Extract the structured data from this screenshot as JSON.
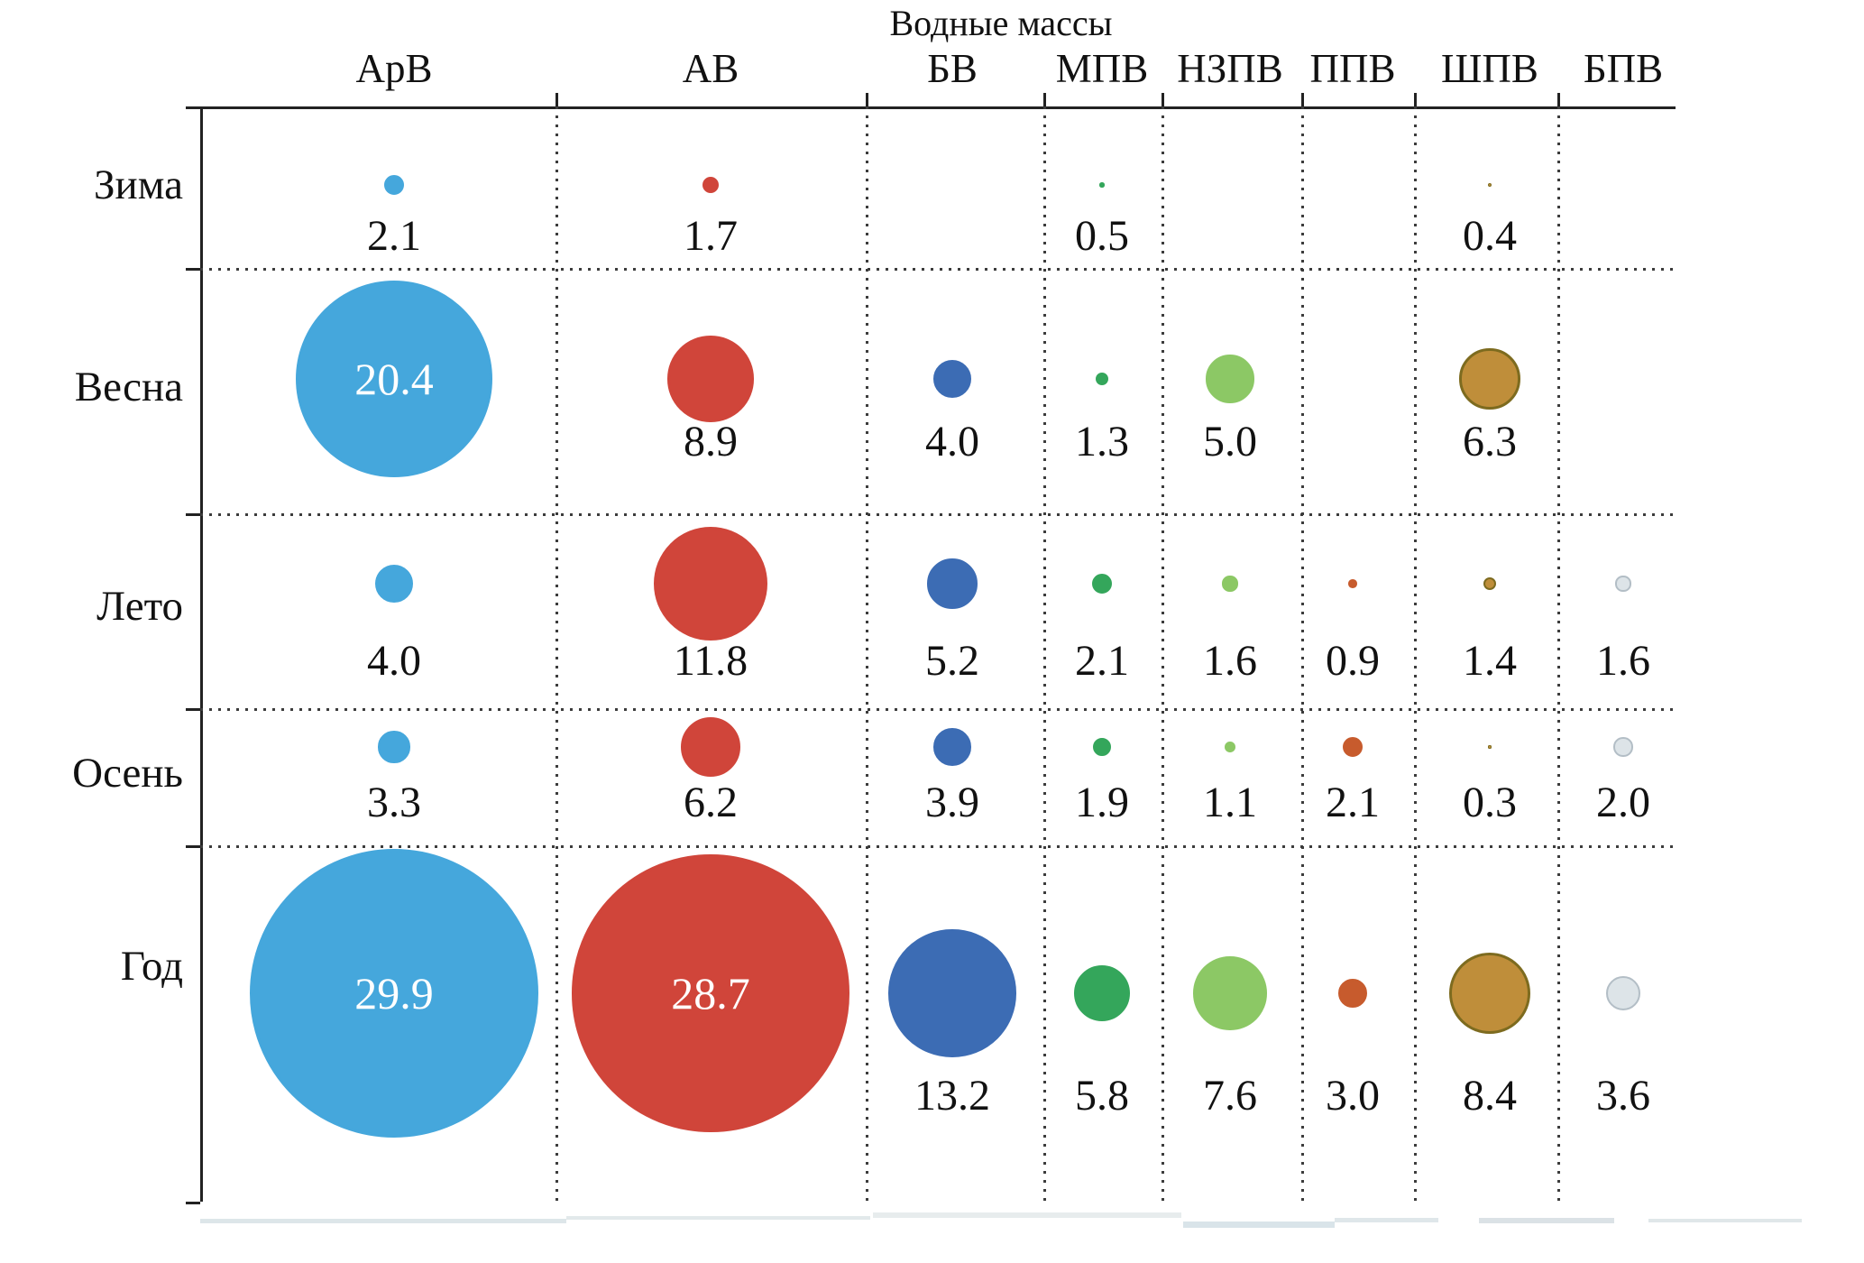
{
  "title": "Водные массы",
  "columns": [
    {
      "label": "АрВ",
      "fill": "#45a7dc",
      "border": "#45a7dc"
    },
    {
      "label": "АВ",
      "fill": "#d0453a",
      "border": "#d0453a"
    },
    {
      "label": "БВ",
      "fill": "#3c6cb4",
      "border": "#3c6cb4"
    },
    {
      "label": "МПВ",
      "fill": "#34a65b",
      "border": "#34a65b"
    },
    {
      "label": "НЗПВ",
      "fill": "#8cc865",
      "border": "#8cc865"
    },
    {
      "label": "ППВ",
      "fill": "#c75b2d",
      "border": "#c75b2d"
    },
    {
      "label": "ШПВ",
      "fill": "#bf8e3a",
      "border": "#7d6b1f"
    },
    {
      "label": "БПВ",
      "fill": "#dde4e8",
      "border": "#b3bec6"
    }
  ],
  "rows": [
    "Зима",
    "Весна",
    "Лето",
    "Осень",
    "Год"
  ],
  "chart_data": {
    "type": "scatter",
    "variant": "bubble-matrix",
    "title": "Водные массы",
    "rows": [
      "Зима",
      "Весна",
      "Лето",
      "Осень",
      "Год"
    ],
    "categories": [
      "АрВ",
      "АВ",
      "БВ",
      "МПВ",
      "НЗПВ",
      "ППВ",
      "ШПВ",
      "БПВ"
    ],
    "values": [
      [
        2.1,
        1.7,
        null,
        0.5,
        null,
        null,
        0.4,
        null
      ],
      [
        20.4,
        8.9,
        4.0,
        1.3,
        5.0,
        null,
        6.3,
        null
      ],
      [
        4.0,
        11.8,
        5.2,
        2.1,
        1.6,
        0.9,
        1.4,
        1.6
      ],
      [
        3.3,
        6.2,
        3.9,
        1.9,
        1.1,
        2.1,
        0.3,
        2.0
      ],
      [
        29.9,
        28.7,
        13.2,
        5.8,
        7.6,
        3.0,
        8.4,
        3.6
      ]
    ],
    "value_labels": [
      [
        "2.1",
        "1.7",
        null,
        "0.5",
        null,
        null,
        "0.4",
        null
      ],
      [
        "20.4",
        "8.9",
        "4.0",
        "1.3",
        "5.0",
        null,
        "6.3",
        null
      ],
      [
        "4.0",
        "11.8",
        "5.2",
        "2.1",
        "1.6",
        "0.9",
        "1.4",
        "1.6"
      ],
      [
        "3.3",
        "6.2",
        "3.9",
        "1.9",
        "1.1",
        "2.1",
        "0.3",
        "2.0"
      ],
      [
        "29.9",
        "28.7",
        "13.2",
        "5.8",
        "7.6",
        "3.0",
        "8.4",
        "3.6"
      ]
    ],
    "labels_inside_bubble": [
      [
        1,
        0
      ],
      [
        4,
        0
      ],
      [
        4,
        1
      ]
    ],
    "size_encoding": "bubble diameter proportional to value",
    "legend_position": "none",
    "grid": "dotted row and column separators"
  }
}
